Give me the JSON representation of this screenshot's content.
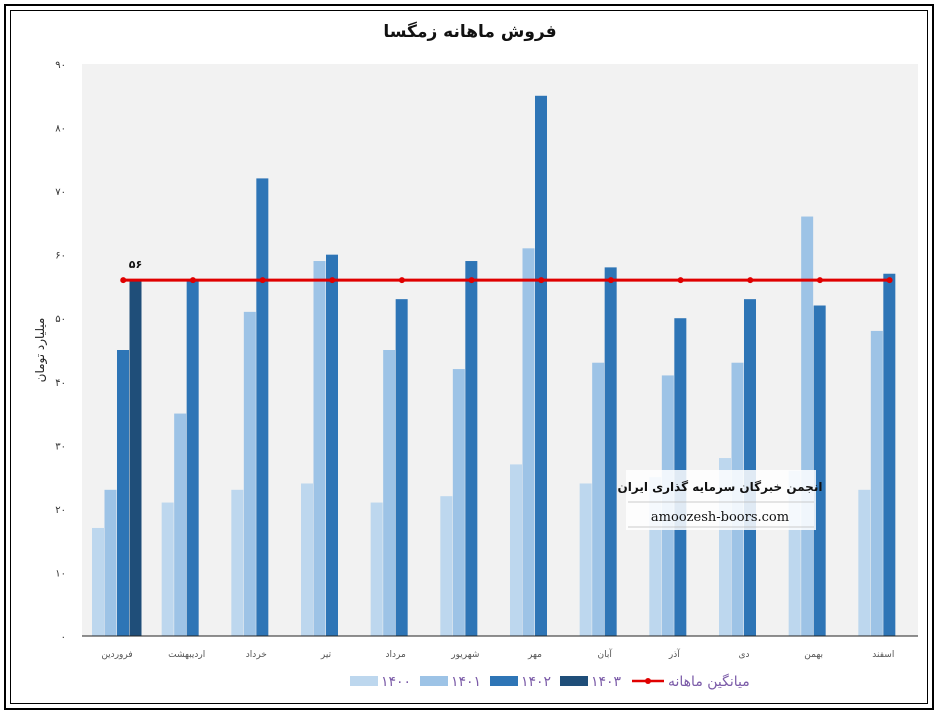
{
  "chart_data": {
    "type": "bar",
    "title": "فروش ماهانه زمگسا",
    "ylabel": "میلیارد تومان",
    "ylim": [
      0,
      90
    ],
    "yticks": [
      "۰",
      "۱۰",
      "۲۰",
      "۳۰",
      "۴۰",
      "۵۰",
      "۶۰",
      "۷۰",
      "۸۰",
      "۹۰"
    ],
    "categories": [
      "فروردین",
      "اردیبهشت",
      "خرداد",
      "تیر",
      "مرداد",
      "شهریور",
      "مهر",
      "آبان",
      "آذر",
      "دی",
      "بهمن",
      "اسفند"
    ],
    "series": [
      {
        "name": "۱۴۰۰",
        "color": "#bdd7ee",
        "values": [
          17,
          21,
          23,
          24,
          21,
          22,
          27,
          24,
          25,
          28,
          26,
          23
        ]
      },
      {
        "name": "۱۴۰۱",
        "color": "#9dc3e6",
        "values": [
          23,
          35,
          51,
          59,
          45,
          42,
          61,
          43,
          41,
          43,
          66,
          48
        ]
      },
      {
        "name": "۱۴۰۲",
        "color": "#2e75b6",
        "values": [
          45,
          56,
          72,
          60,
          53,
          59,
          85,
          58,
          50,
          53,
          52,
          57
        ]
      },
      {
        "name": "۱۴۰۳",
        "color": "#1f4e79",
        "values": [
          56,
          null,
          null,
          null,
          null,
          null,
          null,
          null,
          null,
          null,
          null,
          null
        ]
      }
    ],
    "average_line": {
      "name": "میانگین ماهانه",
      "color": "#e00000",
      "value": 56
    },
    "data_label": "۵۶",
    "grid": false,
    "legend_position": "bottom",
    "plot_background": "#f2f2f2"
  },
  "watermark": {
    "title": "انجمن خبرگان سرمایه گذاری ایران",
    "url": "amoozesh-boors.com"
  }
}
